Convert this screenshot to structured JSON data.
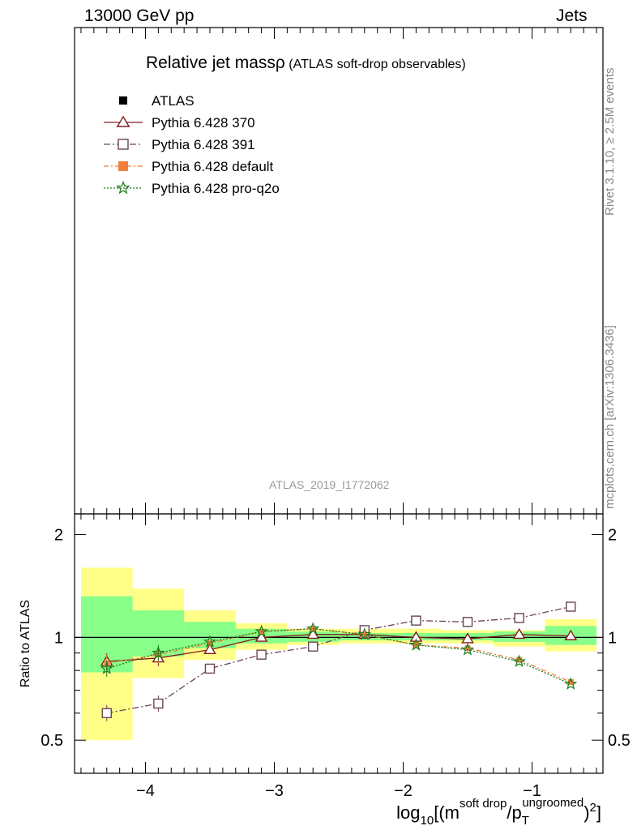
{
  "header": {
    "left": "13000 GeV pp",
    "right": "Jets"
  },
  "plot": {
    "title": "Relative jet mass",
    "title_symbol": "ρ",
    "title_suffix": " (ATLAS soft-drop observables)",
    "analysis_id": "ATLAS_2019_I1772062"
  },
  "side_labels": {
    "rivet": "Rivet 3.1.10, ≥ 2.5M events",
    "mcplots": "mcplots.cern.ch [arXiv:1306.3436]"
  },
  "legend": [
    {
      "label": "ATLAS",
      "marker": "filled-square",
      "color": "#000000"
    },
    {
      "label": "Pythia 6.428 370",
      "marker": "open-triangle",
      "color": "#7f1d1d"
    },
    {
      "label": "Pythia 6.428 391",
      "marker": "open-square",
      "color": "#6b4458"
    },
    {
      "label": "Pythia 6.428 default",
      "marker": "filled-square",
      "color": "#f07f3c"
    },
    {
      "label": "Pythia 6.428 pro-q2o",
      "marker": "star",
      "color": "#1a7a1a"
    }
  ],
  "chart_data": {
    "type": "line",
    "ylabel": "Ratio to ATLAS",
    "xlabel_parts": {
      "prefix": "log",
      "prefix_sub": "10",
      "open": "[(m",
      "m_sup": "soft drop",
      "slash": "/p",
      "p_sub": "T",
      "p_sup": "ungroomed",
      "close": ")",
      "close_sup": "2",
      "end": "]"
    },
    "xlim": [
      -4.55,
      -0.45
    ],
    "ylim": [
      0.4,
      2.3
    ],
    "y_scale": "log",
    "x_ticks": [
      "−4",
      "−3",
      "−2",
      "−1"
    ],
    "x_tick_values": [
      -4,
      -3,
      -2,
      -1
    ],
    "y_ticks": [
      "0.5",
      "1",
      "2"
    ],
    "y_tick_values": [
      0.5,
      1,
      2
    ],
    "reference_line": 1,
    "bands": {
      "bin_edges": [
        -4.5,
        -4.1,
        -3.7,
        -3.3,
        -2.9,
        -2.5,
        -2.1,
        -1.7,
        -1.3,
        -0.9,
        -0.5
      ],
      "yellow": [
        [
          0.5,
          1.6
        ],
        [
          0.76,
          1.39
        ],
        [
          0.86,
          1.2
        ],
        [
          0.92,
          1.1
        ],
        [
          0.95,
          1.06
        ],
        [
          0.96,
          1.06
        ],
        [
          0.96,
          1.06
        ],
        [
          0.96,
          1.05
        ],
        [
          0.94,
          1.05
        ],
        [
          0.91,
          1.13
        ]
      ],
      "green": [
        [
          0.79,
          1.32
        ],
        [
          0.88,
          1.2
        ],
        [
          0.93,
          1.11
        ],
        [
          0.96,
          1.06
        ],
        [
          0.97,
          1.04
        ],
        [
          0.98,
          1.03
        ],
        [
          0.98,
          1.03
        ],
        [
          0.98,
          1.03
        ],
        [
          0.97,
          1.04
        ],
        [
          0.95,
          1.08
        ]
      ]
    },
    "x": [
      -4.3,
      -3.9,
      -3.5,
      -3.1,
      -2.7,
      -2.3,
      -1.9,
      -1.5,
      -1.1,
      -0.7
    ],
    "series": [
      {
        "name": "Pythia 6.428 370",
        "color": "#7f1d1d",
        "marker": "open-triangle",
        "dash": "",
        "values": [
          0.85,
          0.87,
          0.92,
          1.0,
          1.02,
          1.02,
          1.0,
          0.99,
          1.02,
          1.01
        ]
      },
      {
        "name": "Pythia 6.428 391",
        "color": "#6b4458",
        "marker": "open-square",
        "dash": "8,3,2,3",
        "values": [
          0.6,
          0.64,
          0.81,
          0.89,
          0.94,
          1.05,
          1.12,
          1.11,
          1.14,
          1.23
        ]
      },
      {
        "name": "Pythia 6.428 default",
        "color": "#f07f3c",
        "marker": "filled-square",
        "dash": "6,3,2,3",
        "values": [
          0.84,
          0.89,
          0.96,
          1.04,
          1.06,
          1.02,
          0.95,
          0.93,
          0.86,
          0.74
        ]
      },
      {
        "name": "Pythia 6.428 pro-q2o",
        "color": "#1a7a1a",
        "marker": "star",
        "dash": "2,2",
        "values": [
          0.81,
          0.9,
          0.97,
          1.04,
          1.06,
          1.02,
          0.95,
          0.92,
          0.85,
          0.73
        ]
      }
    ]
  }
}
